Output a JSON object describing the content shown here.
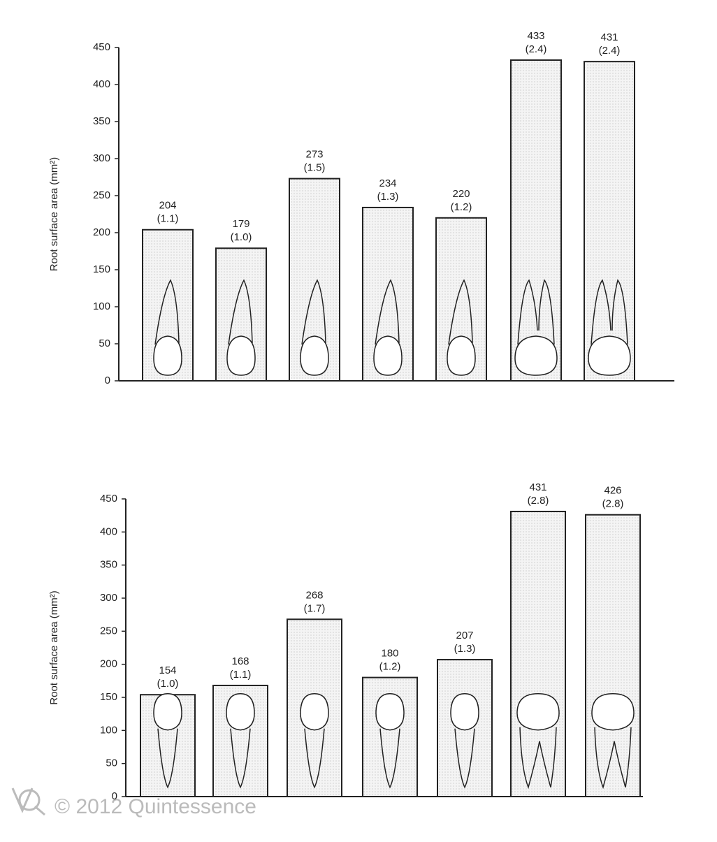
{
  "chart_data": [
    {
      "type": "bar",
      "ylabel": "Root surface area (mm²)",
      "values": [
        204,
        179,
        273,
        234,
        220,
        433,
        431
      ],
      "ratio_labels": [
        "(1.1)",
        "(1.0)",
        "(1.5)",
        "(1.3)",
        "(1.2)",
        "(2.4)",
        "(2.4)"
      ],
      "ylim": [
        0,
        450
      ],
      "yticks": [
        0,
        50,
        100,
        150,
        200,
        250,
        300,
        350,
        400,
        450
      ],
      "color": "#f0f0f0",
      "grid": false,
      "root": "up"
    },
    {
      "type": "bar",
      "ylabel": "Root surface area (mm²)",
      "values": [
        154,
        168,
        268,
        180,
        207,
        431,
        426
      ],
      "ratio_labels": [
        "(1.0)",
        "(1.1)",
        "(1.7)",
        "(1.2)",
        "(1.3)",
        "(2.8)",
        "(2.8)"
      ],
      "ylim": [
        0,
        450
      ],
      "yticks": [
        0,
        50,
        100,
        150,
        200,
        250,
        300,
        350,
        400,
        450
      ],
      "color": "#f0f0f0",
      "grid": false,
      "root": "down"
    }
  ],
  "watermark": "© 2012 Quintessence"
}
